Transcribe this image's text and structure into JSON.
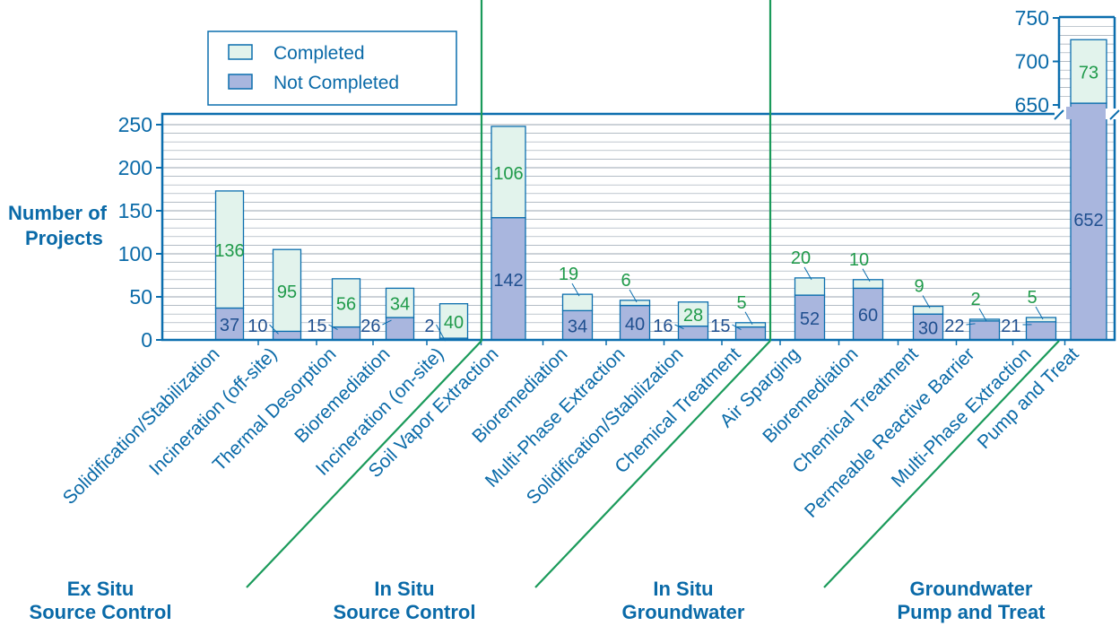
{
  "colors": {
    "completed": "#e2f3ec",
    "not_completed": "#a9b6de",
    "frame": "#0b6eae",
    "grid": "#9aa6b2",
    "divider": "#1a9a5a",
    "label_completed": "#1f9a4a",
    "label_not_completed": "#1f4f8f"
  },
  "chart_data": {
    "type": "bar",
    "stacked": true,
    "ylabel": [
      "Number of",
      "Projects"
    ],
    "ylim_main": [
      0,
      250
    ],
    "yticks_main": [
      0,
      50,
      100,
      150,
      200,
      250
    ],
    "ylim_break": [
      650,
      750
    ],
    "yticks_break": [
      650,
      700,
      750
    ],
    "legend": {
      "position": "top-left",
      "items": [
        "Completed",
        "Not Completed"
      ]
    },
    "groups": [
      "Ex Situ Source Control",
      "In Situ Source Control",
      "In Situ Groundwater",
      "Groundwater Pump and Treat"
    ],
    "group_titles": [
      [
        "Ex Situ",
        "Source Control"
      ],
      [
        "In Situ",
        "Source Control"
      ],
      [
        "In Situ",
        "Groundwater"
      ],
      [
        "Groundwater",
        "Pump and Treat"
      ]
    ],
    "categories": [
      "Solidification/Stabilization",
      "Incineration (off-site)",
      "Thermal Desorption",
      "Bioremediation",
      "Incineration (on-site)",
      "Soil Vapor Extraction",
      "Bioremediation",
      "Multi-Phase Extraction",
      "Solidification/Stabilization",
      "Chemical Treatment",
      "Air Sparging",
      "Bioremediation",
      "Chemical Treatment",
      "Permeable Reactive Barrier",
      "Multi-Phase Extraction",
      "Pump and Treat"
    ],
    "group_index": [
      0,
      0,
      0,
      0,
      0,
      1,
      1,
      1,
      1,
      1,
      2,
      2,
      2,
      2,
      2,
      3
    ],
    "series": [
      {
        "name": "Not Completed",
        "values": [
          37,
          10,
          15,
          26,
          2,
          142,
          34,
          40,
          16,
          15,
          52,
          60,
          30,
          22,
          21,
          652
        ]
      },
      {
        "name": "Completed",
        "values": [
          136,
          95,
          56,
          34,
          40,
          106,
          19,
          6,
          28,
          5,
          20,
          10,
          9,
          2,
          5,
          73
        ]
      }
    ],
    "grid": true
  }
}
